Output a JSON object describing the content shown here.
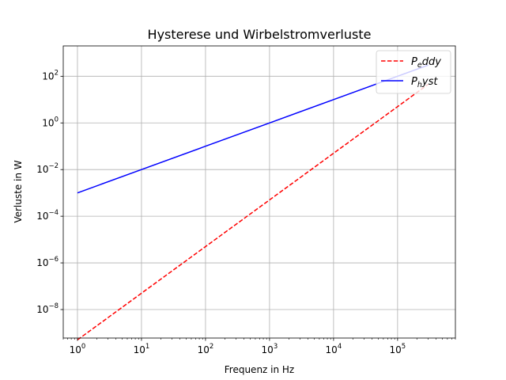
{
  "chart_data": {
    "type": "line",
    "title": "Hysterese und Wirbelstromverluste",
    "xlabel": "Frequenz in Hz",
    "ylabel": "Verluste in W",
    "xscale": "log",
    "yscale": "log",
    "xlim": [
      0.6,
      800000
    ],
    "ylim": [
      6e-10,
      2000
    ],
    "grid": true,
    "legend_position": "top-right",
    "x_ticks": [
      {
        "base": "10",
        "exp": "0",
        "value": 1
      },
      {
        "base": "10",
        "exp": "1",
        "value": 10
      },
      {
        "base": "10",
        "exp": "2",
        "value": 100
      },
      {
        "base": "10",
        "exp": "3",
        "value": 1000
      },
      {
        "base": "10",
        "exp": "4",
        "value": 10000
      },
      {
        "base": "10",
        "exp": "5",
        "value": 100000
      }
    ],
    "y_ticks": [
      {
        "base": "10",
        "exp": "−8",
        "value": 1e-08
      },
      {
        "base": "10",
        "exp": "−6",
        "value": 1e-06
      },
      {
        "base": "10",
        "exp": "−4",
        "value": 0.0001
      },
      {
        "base": "10",
        "exp": "−2",
        "value": 0.01
      },
      {
        "base": "10",
        "exp": "0",
        "value": 1
      },
      {
        "base": "10",
        "exp": "2",
        "value": 100
      }
    ],
    "series": [
      {
        "name_main": "P",
        "name_sub": "e",
        "name_rest": "ddy",
        "color": "#ff0000",
        "dash": "dashed",
        "x": [
          1,
          10,
          100,
          1000,
          10000,
          100000,
          300000
        ],
        "y": [
          5e-10,
          5e-08,
          5e-06,
          0.0005,
          0.05,
          5,
          45
        ]
      },
      {
        "name_main": "P",
        "name_sub": "h",
        "name_rest": "yst",
        "color": "#0000ff",
        "dash": "solid",
        "x": [
          1,
          10,
          100,
          1000,
          10000,
          100000,
          300000
        ],
        "y": [
          0.001,
          0.01,
          0.1,
          1,
          10,
          100,
          300
        ]
      }
    ]
  }
}
